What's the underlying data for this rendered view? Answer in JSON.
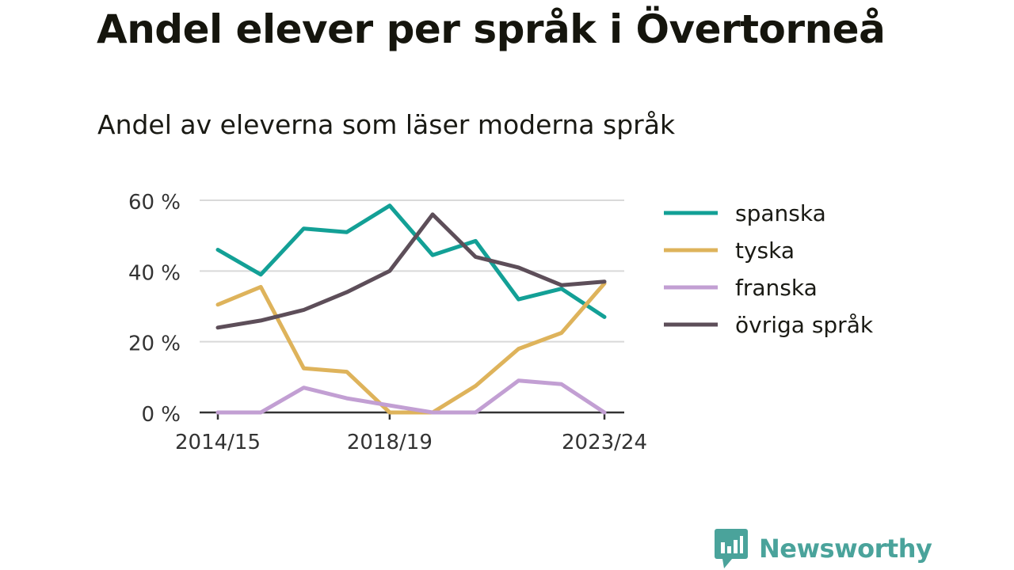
{
  "header": {
    "title": "Andel elever per språk i Övertorneå",
    "subtitle": "Andel av eleverna som läser moderna språk"
  },
  "brand": {
    "name": "Newsworthy",
    "icon": "newsworthy-logo-icon",
    "color": "#4aa39b"
  },
  "chart_data": {
    "type": "line",
    "x": [
      "2014/15",
      "2015/16",
      "2016/17",
      "2017/18",
      "2018/19",
      "2019/20",
      "2020/21",
      "2021/22",
      "2022/23",
      "2023/24"
    ],
    "x_tick_labels": [
      "2014/15",
      "2018/19",
      "2023/24"
    ],
    "y_ticks": [
      0,
      20,
      40,
      60
    ],
    "y_tick_labels": [
      "0 %",
      "20 %",
      "40 %",
      "60 %"
    ],
    "ylim": [
      0,
      60
    ],
    "grid": true,
    "legend_position": "right",
    "series": [
      {
        "name": "spanska",
        "color": "#13a096",
        "values": [
          46,
          39,
          52,
          51,
          58.5,
          44.5,
          48.5,
          32,
          35,
          27
        ]
      },
      {
        "name": "tyska",
        "color": "#deb35b",
        "values": [
          30.5,
          35.5,
          12.5,
          11.5,
          0,
          0,
          7.5,
          18,
          22.5,
          36.5
        ]
      },
      {
        "name": "franska",
        "color": "#c29fd3",
        "values": [
          0,
          0,
          7,
          4,
          2,
          0,
          0,
          9,
          8,
          0
        ]
      },
      {
        "name": "övriga språk",
        "color": "#5d4e59",
        "values": [
          24,
          26,
          29,
          34,
          40,
          56,
          44,
          41,
          36,
          37
        ]
      }
    ]
  }
}
